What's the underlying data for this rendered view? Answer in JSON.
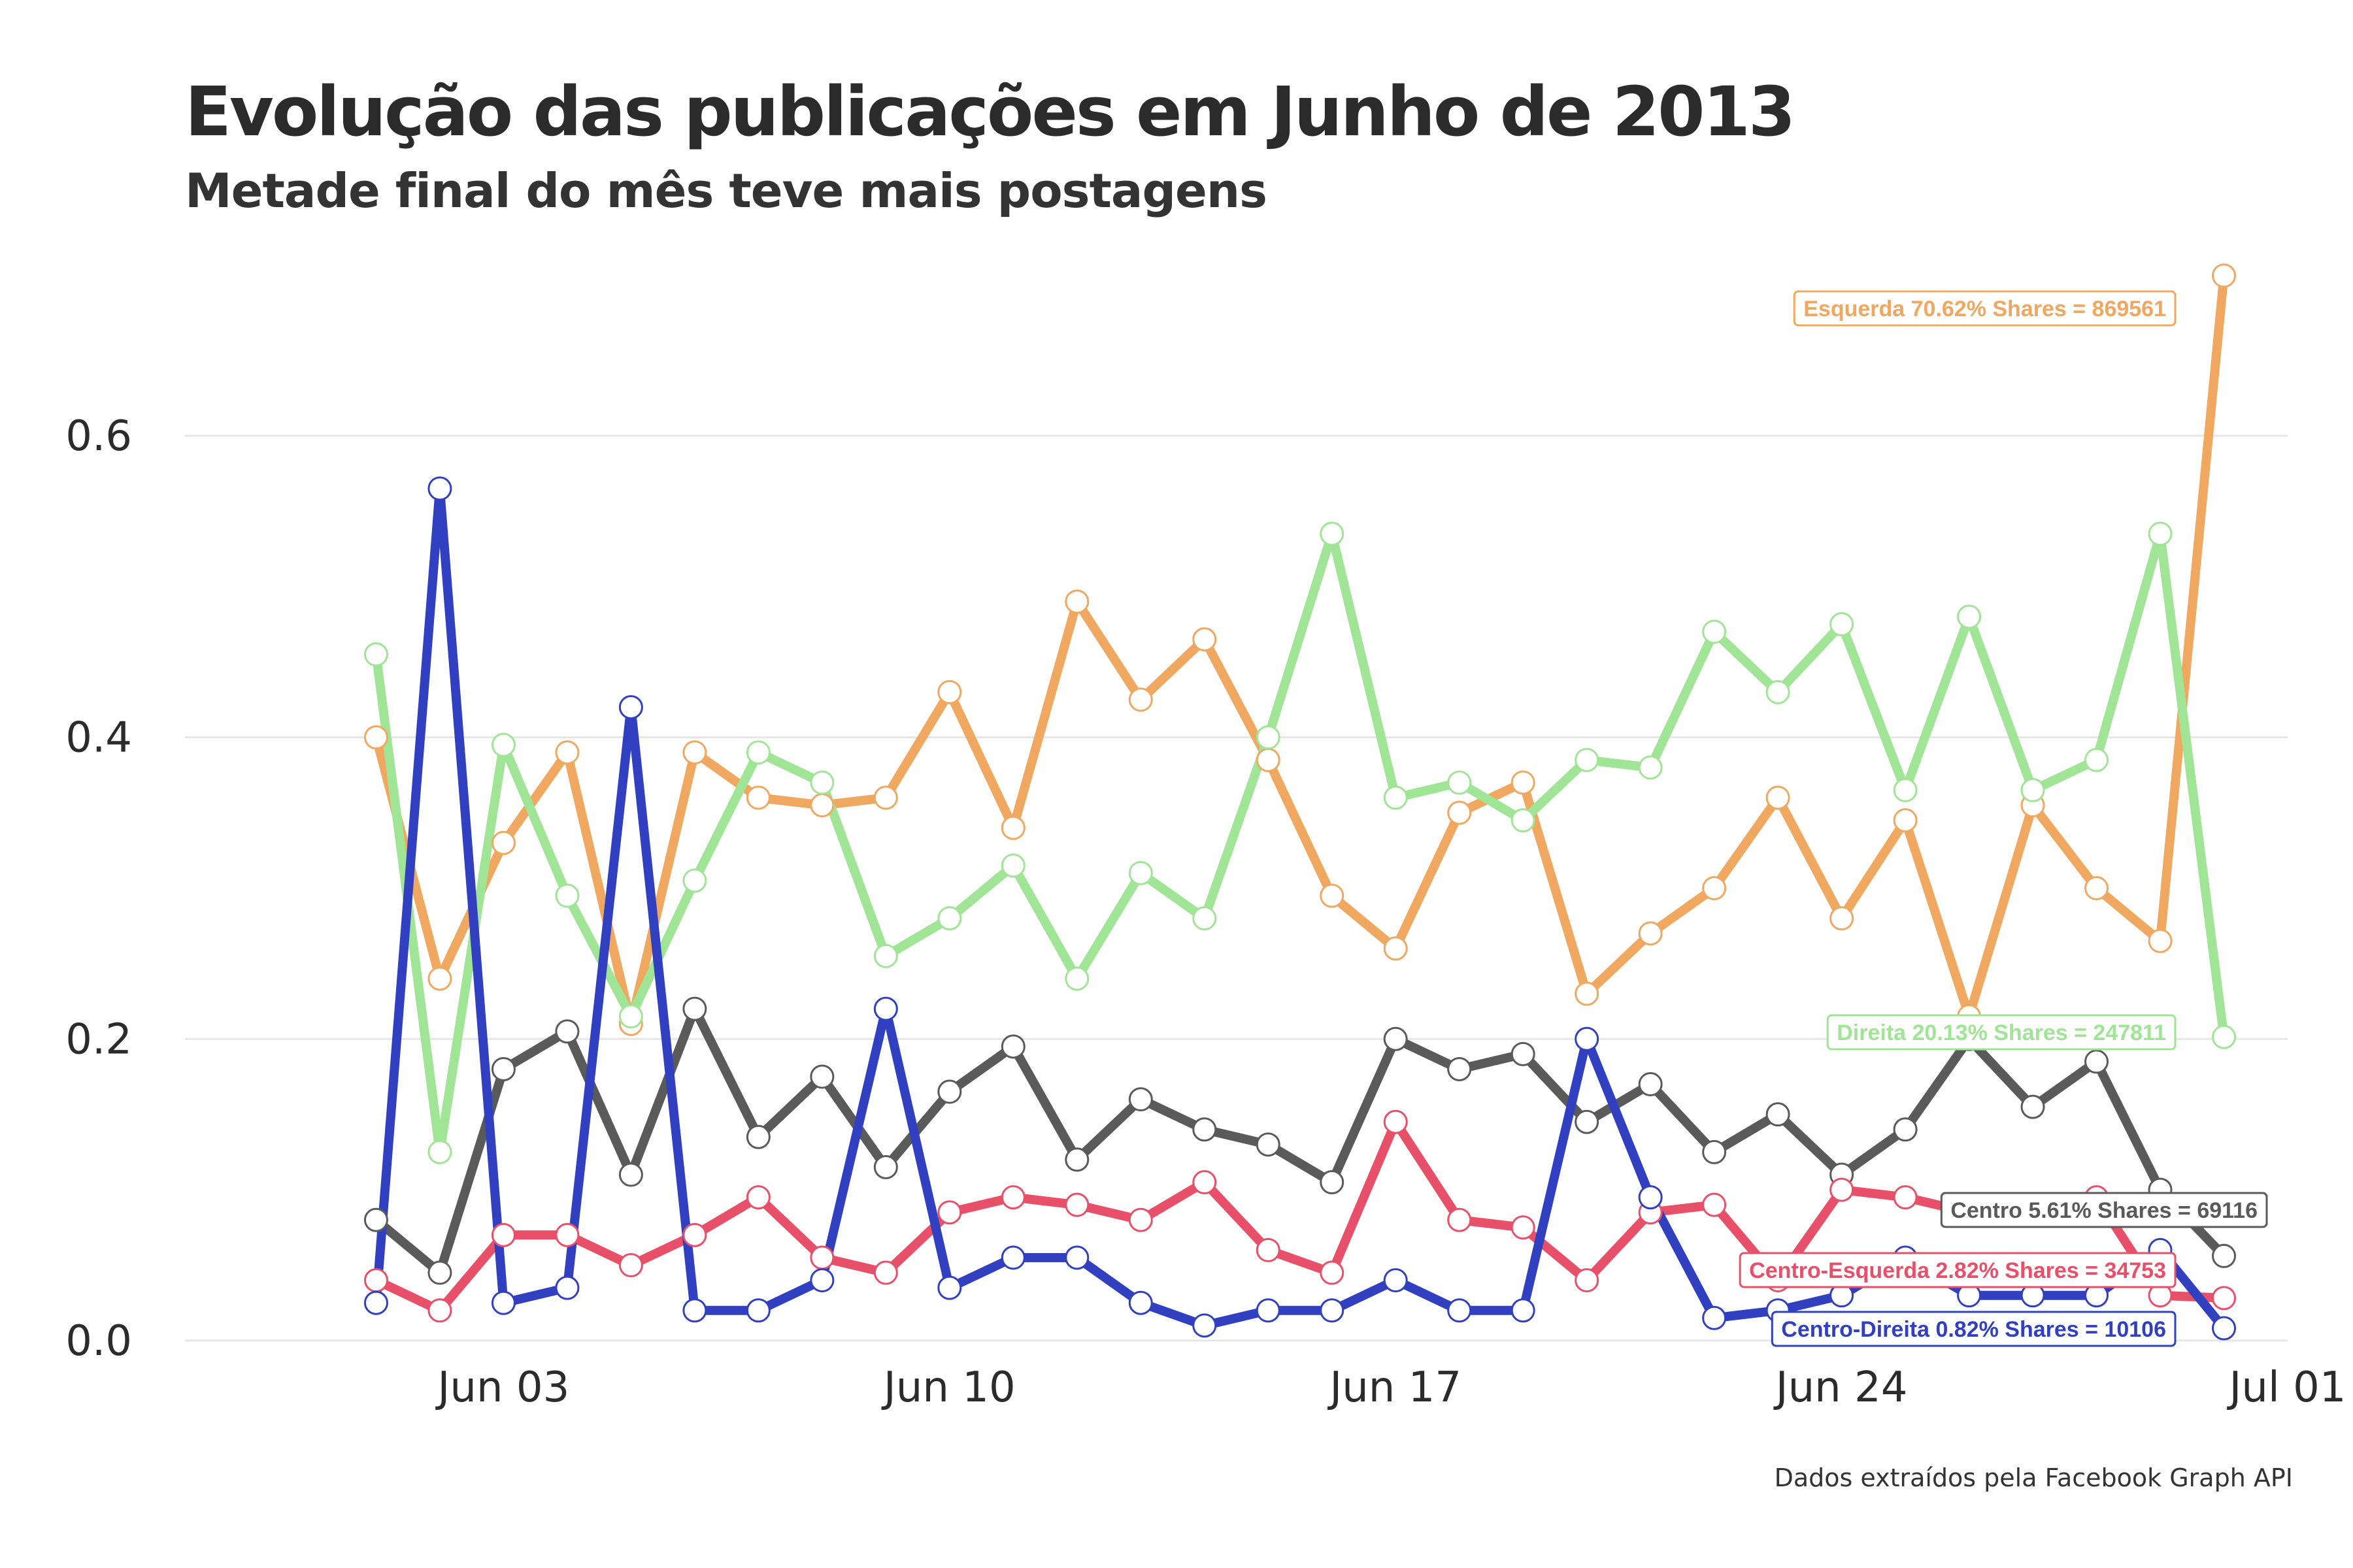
{
  "chart_data": {
    "type": "line",
    "title": "Evolução das publicações em Junho de 2013",
    "subtitle": "Metade final do mês teve mais postagens",
    "caption": "Dados extraídos pela Facebook Graph API",
    "xlabel": "",
    "ylabel": "",
    "x_ticks": [
      "Jun 03",
      "Jun 10",
      "Jun 17",
      "Jun 24",
      "Jul 01"
    ],
    "y_ticks": [
      "0.0",
      "0.2",
      "0.4",
      "0.6"
    ],
    "ylim": [
      -0.01,
      0.72
    ],
    "grid": "horizontal major",
    "x": [
      "2013-06-01",
      "2013-06-02",
      "2013-06-03",
      "2013-06-04",
      "2013-06-05",
      "2013-06-06",
      "2013-06-07",
      "2013-06-08",
      "2013-06-09",
      "2013-06-10",
      "2013-06-11",
      "2013-06-12",
      "2013-06-13",
      "2013-06-14",
      "2013-06-15",
      "2013-06-16",
      "2013-06-17",
      "2013-06-18",
      "2013-06-19",
      "2013-06-20",
      "2013-06-21",
      "2013-06-22",
      "2013-06-23",
      "2013-06-24",
      "2013-06-25",
      "2013-06-26",
      "2013-06-27",
      "2013-06-28",
      "2013-06-29",
      "2013-06-30"
    ],
    "series": [
      {
        "name": "Esquerda",
        "color": "#f0a860",
        "values": [
          0.4,
          0.24,
          0.33,
          0.39,
          0.21,
          0.39,
          0.36,
          0.355,
          0.36,
          0.43,
          0.34,
          0.49,
          0.425,
          0.465,
          0.385,
          0.295,
          0.26,
          0.35,
          0.37,
          0.23,
          0.27,
          0.3,
          0.36,
          0.28,
          0.345,
          0.215,
          0.355,
          0.3,
          0.265,
          0.7062
        ]
      },
      {
        "name": "Direita",
        "color": "#a0e496",
        "values": [
          0.455,
          0.125,
          0.395,
          0.295,
          0.215,
          0.305,
          0.39,
          0.37,
          0.255,
          0.28,
          0.315,
          0.24,
          0.31,
          0.28,
          0.4,
          0.535,
          0.36,
          0.37,
          0.345,
          0.385,
          0.38,
          0.47,
          0.43,
          0.475,
          0.365,
          0.48,
          0.365,
          0.385,
          0.535,
          0.2013
        ]
      },
      {
        "name": "Centro",
        "color": "#5a5a5a",
        "values": [
          0.08,
          0.045,
          0.18,
          0.205,
          0.11,
          0.22,
          0.135,
          0.175,
          0.115,
          0.165,
          0.195,
          0.12,
          0.16,
          0.14,
          0.13,
          0.105,
          0.2,
          0.18,
          0.19,
          0.145,
          0.17,
          0.125,
          0.15,
          0.11,
          0.14,
          0.2,
          0.155,
          0.185,
          0.1,
          0.0561
        ]
      },
      {
        "name": "Centro-Esquerda",
        "color": "#e8506a",
        "values": [
          0.04,
          0.02,
          0.07,
          0.07,
          0.05,
          0.07,
          0.095,
          0.055,
          0.045,
          0.085,
          0.095,
          0.09,
          0.08,
          0.105,
          0.06,
          0.045,
          0.145,
          0.08,
          0.075,
          0.04,
          0.085,
          0.09,
          0.04,
          0.1,
          0.095,
          0.085,
          0.09,
          0.095,
          0.03,
          0.0282
        ]
      },
      {
        "name": "Centro-Direita",
        "color": "#3040c0",
        "values": [
          0.025,
          0.565,
          0.025,
          0.035,
          0.42,
          0.02,
          0.02,
          0.04,
          0.22,
          0.035,
          0.055,
          0.055,
          0.025,
          0.01,
          0.02,
          0.02,
          0.04,
          0.02,
          0.02,
          0.2,
          0.095,
          0.015,
          0.02,
          0.03,
          0.055,
          0.03,
          0.03,
          0.03,
          0.06,
          0.0082
        ]
      }
    ],
    "annotations": [
      {
        "series": "Esquerda",
        "text": "Esquerda 70.62% Shares = 869561",
        "color": "#f0a860"
      },
      {
        "series": "Direita",
        "text": "Direita 20.13% Shares = 247811",
        "color": "#a0e496"
      },
      {
        "series": "Centro",
        "text": "Centro 5.61% Shares = 69116",
        "color": "#5a5a5a"
      },
      {
        "series": "Centro-Esquerda",
        "text": "Centro-Esquerda 2.82% Shares = 34753",
        "color": "#e8506a"
      },
      {
        "series": "Centro-Direita",
        "text": "Centro-Direita 0.82% Shares = 10106",
        "color": "#3040c0"
      }
    ]
  }
}
